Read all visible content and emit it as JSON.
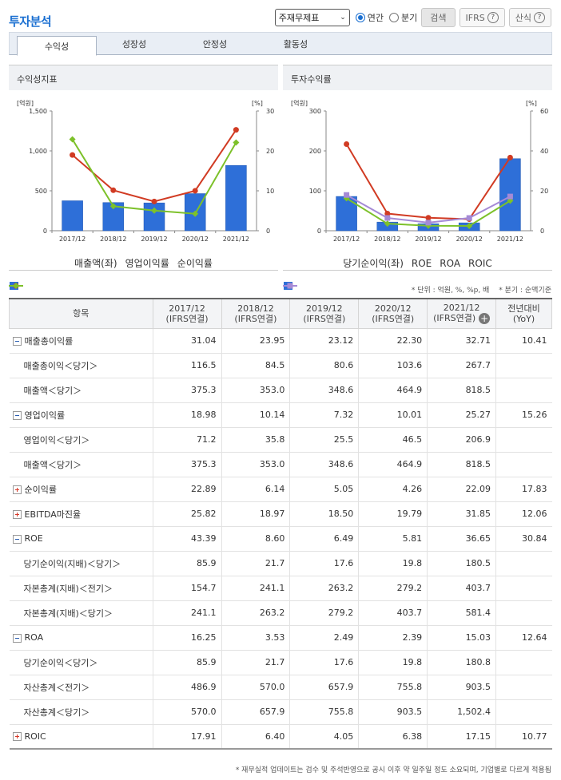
{
  "header": {
    "title": "투자분석",
    "select_value": "주재무제표",
    "radio_annual": "연간",
    "radio_quarter": "분기",
    "search_label": "검색",
    "ifrs_label": "IFRS",
    "formula_label": "산식"
  },
  "tabs": [
    "수익성",
    "성장성",
    "안정성",
    "활동성"
  ],
  "panels": {
    "left_title": "수익성지표",
    "right_title": "투자수익률"
  },
  "colors": {
    "bar": "#2e6fd8",
    "red": "#d13b23",
    "green": "#7dc12a",
    "purple": "#a58ad6"
  },
  "chart_data": [
    {
      "type": "bar",
      "categories": [
        "2017/12",
        "2018/12",
        "2019/12",
        "2020/12",
        "2021/12"
      ],
      "left_axis": {
        "unit": "[억원]",
        "ylim": [
          0,
          1500
        ],
        "ticks": [
          0,
          500,
          1000,
          1500
        ],
        "tick_labels": [
          "0",
          "500",
          "1,000",
          "1,500"
        ]
      },
      "right_axis": {
        "unit": "[%]",
        "ylim": [
          0,
          30
        ],
        "ticks": [
          0,
          10,
          20,
          30
        ]
      },
      "series": [
        {
          "name": "매출액(좌)",
          "kind": "bar",
          "axis": "left",
          "color": "#2e6fd8",
          "values": [
            375.3,
            353.0,
            348.6,
            464.9,
            818.5
          ]
        },
        {
          "name": "영업이익률",
          "kind": "line",
          "axis": "right",
          "marker": "circle",
          "color": "#d13b23",
          "values": [
            18.98,
            10.14,
            7.32,
            10.01,
            25.27
          ]
        },
        {
          "name": "순이익률",
          "kind": "line",
          "axis": "right",
          "marker": "diamond",
          "color": "#7dc12a",
          "values": [
            22.89,
            6.14,
            5.05,
            4.26,
            22.09
          ]
        }
      ],
      "grid": false
    },
    {
      "type": "bar",
      "categories": [
        "2017/12",
        "2018/12",
        "2019/12",
        "2020/12",
        "2021/12"
      ],
      "left_axis": {
        "unit": "[억원]",
        "ylim": [
          0,
          300
        ],
        "ticks": [
          0,
          100,
          200,
          300
        ],
        "tick_labels": [
          "0",
          "100",
          "200",
          "300"
        ]
      },
      "right_axis": {
        "unit": "[%]",
        "ylim": [
          0,
          60
        ],
        "ticks": [
          0,
          20,
          40,
          60
        ]
      },
      "series": [
        {
          "name": "당기순이익(좌)",
          "kind": "bar",
          "axis": "left",
          "color": "#2e6fd8",
          "values": [
            85.9,
            21.7,
            17.6,
            19.8,
            180.5
          ]
        },
        {
          "name": "ROE",
          "kind": "line",
          "axis": "right",
          "marker": "circle",
          "color": "#d13b23",
          "values": [
            43.39,
            8.6,
            6.49,
            5.81,
            36.65
          ]
        },
        {
          "name": "ROA",
          "kind": "line",
          "axis": "right",
          "marker": "diamond",
          "color": "#7dc12a",
          "values": [
            16.25,
            3.53,
            2.49,
            2.39,
            15.03
          ]
        },
        {
          "name": "ROIC",
          "kind": "line",
          "axis": "right",
          "marker": "square",
          "color": "#a58ad6",
          "values": [
            17.91,
            6.4,
            4.05,
            6.38,
            17.15
          ]
        }
      ],
      "grid": false
    }
  ],
  "unit_note": "* 단위 : 억원, %, %p, 배 　* 분기 : 순액기준",
  "table": {
    "headers": [
      "항목",
      "2017/12\n(IFRS연결)",
      "2018/12\n(IFRS연결)",
      "2019/12\n(IFRS연결)",
      "2020/12\n(IFRS연결)",
      "2021/12\n(IFRS연결)",
      "전년대비\n(YoY)"
    ],
    "rows": [
      {
        "type": "main",
        "icon": "minus",
        "label": "매출총이익률",
        "values": [
          "31.04",
          "23.95",
          "23.12",
          "22.30",
          "32.71",
          "10.41"
        ]
      },
      {
        "type": "sub",
        "label": "매출총이익＜당기＞",
        "values": [
          "116.5",
          "84.5",
          "80.6",
          "103.6",
          "267.7",
          ""
        ]
      },
      {
        "type": "sub",
        "label": "매출액＜당기＞",
        "values": [
          "375.3",
          "353.0",
          "348.6",
          "464.9",
          "818.5",
          ""
        ]
      },
      {
        "type": "main",
        "icon": "minus",
        "label": "영업이익률",
        "values": [
          "18.98",
          "10.14",
          "7.32",
          "10.01",
          "25.27",
          "15.26"
        ]
      },
      {
        "type": "sub",
        "label": "영업이익＜당기＞",
        "values": [
          "71.2",
          "35.8",
          "25.5",
          "46.5",
          "206.9",
          ""
        ]
      },
      {
        "type": "sub",
        "label": "매출액＜당기＞",
        "values": [
          "375.3",
          "353.0",
          "348.6",
          "464.9",
          "818.5",
          ""
        ]
      },
      {
        "type": "main",
        "icon": "plus",
        "label": "순이익률",
        "values": [
          "22.89",
          "6.14",
          "5.05",
          "4.26",
          "22.09",
          "17.83"
        ]
      },
      {
        "type": "main",
        "icon": "plus",
        "label": "EBITDA마진율",
        "values": [
          "25.82",
          "18.97",
          "18.50",
          "19.79",
          "31.85",
          "12.06"
        ]
      },
      {
        "type": "main",
        "icon": "minus",
        "label": "ROE",
        "values": [
          "43.39",
          "8.60",
          "6.49",
          "5.81",
          "36.65",
          "30.84"
        ]
      },
      {
        "type": "sub",
        "label": "당기순이익(지배)＜당기＞",
        "values": [
          "85.9",
          "21.7",
          "17.6",
          "19.8",
          "180.5",
          ""
        ]
      },
      {
        "type": "sub",
        "label": "자본총계(지배)＜전기＞",
        "values": [
          "154.7",
          "241.1",
          "263.2",
          "279.2",
          "403.7",
          ""
        ]
      },
      {
        "type": "sub",
        "label": "자본총계(지배)＜당기＞",
        "values": [
          "241.1",
          "263.2",
          "279.2",
          "403.7",
          "581.4",
          ""
        ]
      },
      {
        "type": "main",
        "icon": "minus",
        "label": "ROA",
        "values": [
          "16.25",
          "3.53",
          "2.49",
          "2.39",
          "15.03",
          "12.64"
        ]
      },
      {
        "type": "sub",
        "label": "당기순이익＜당기＞",
        "values": [
          "85.9",
          "21.7",
          "17.6",
          "19.8",
          "180.8",
          ""
        ]
      },
      {
        "type": "sub",
        "label": "자산총계＜전기＞",
        "values": [
          "486.9",
          "570.0",
          "657.9",
          "755.8",
          "903.5",
          ""
        ]
      },
      {
        "type": "sub",
        "label": "자산총계＜당기＞",
        "values": [
          "570.0",
          "657.9",
          "755.8",
          "903.5",
          "1,502.4",
          ""
        ]
      },
      {
        "type": "main",
        "icon": "plus",
        "label": "ROIC",
        "values": [
          "17.91",
          "6.40",
          "4.05",
          "6.38",
          "17.15",
          "10.77"
        ]
      }
    ]
  },
  "footer_note": "* 재무실적 업데이트는 검수 및 주석반영으로 공시 이후 약 일주일 정도 소요되며, 기업별로 다르게 적용됨"
}
